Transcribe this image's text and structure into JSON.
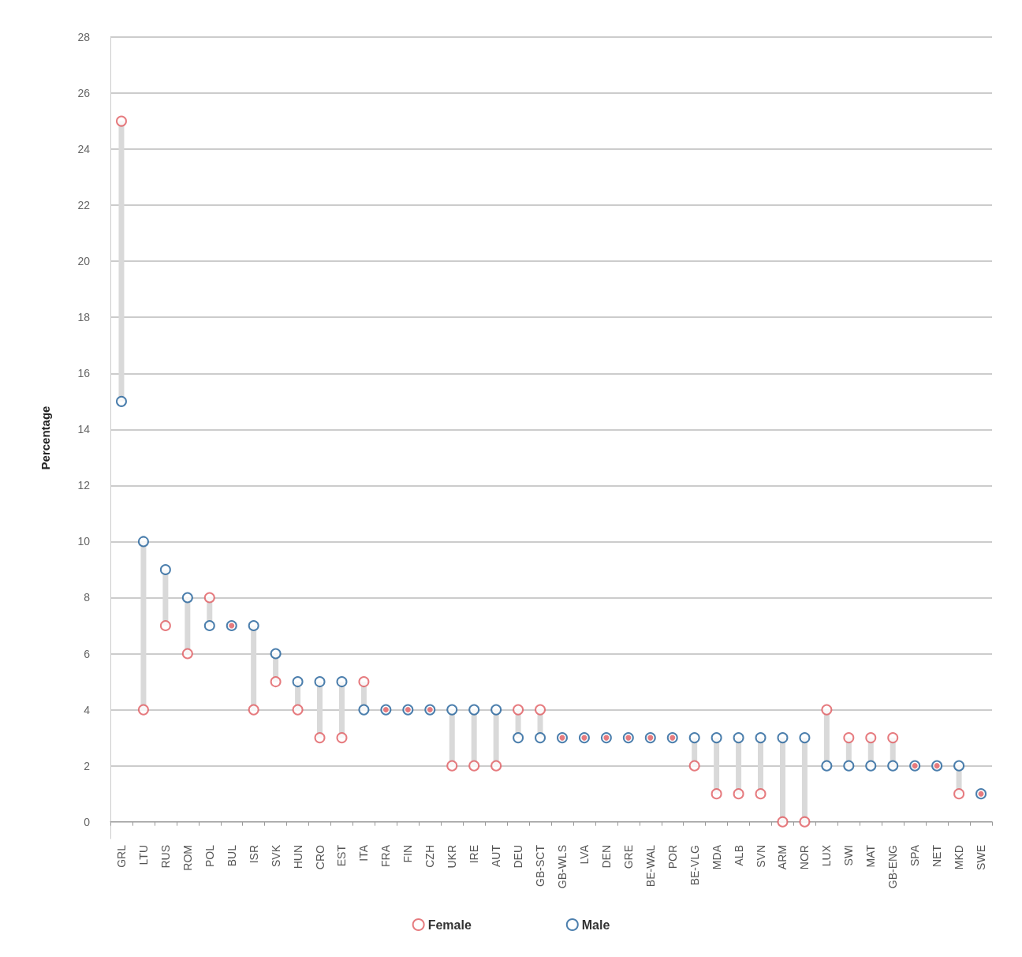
{
  "chart_data": {
    "type": "scatter",
    "ylabel": "Percentage",
    "categories": [
      "GRL",
      "LTU",
      "RUS",
      "ROM",
      "POL",
      "BUL",
      "ISR",
      "SVK",
      "HUN",
      "CRO",
      "EST",
      "ITA",
      "FRA",
      "FIN",
      "CZH",
      "UKR",
      "IRE",
      "AUT",
      "DEU",
      "GB-SCT",
      "GB-WLS",
      "LVA",
      "DEN",
      "GRE",
      "BE-WAL",
      "POR",
      "BE-VLG",
      "MDA",
      "ALB",
      "SVN",
      "ARM",
      "NOR",
      "LUX",
      "SWI",
      "MAT",
      "GB-ENG",
      "SPA",
      "NET",
      "MKD",
      "SWE"
    ],
    "series": [
      {
        "type": "bar",
        "color": "#d9d9d9",
        "base": [
          15,
          4,
          7,
          6,
          7,
          null,
          4,
          5,
          4,
          3,
          3,
          4,
          null,
          null,
          null,
          2,
          2,
          2,
          3,
          3,
          null,
          null,
          null,
          null,
          null,
          null,
          2,
          1,
          1,
          1,
          0,
          0,
          2,
          2,
          2,
          2,
          null,
          null,
          1,
          null
        ],
        "values": [
          10,
          6,
          2,
          2,
          1,
          null,
          3,
          1,
          1,
          2,
          2,
          1,
          null,
          null,
          null,
          2,
          2,
          2,
          1,
          1,
          null,
          null,
          null,
          null,
          null,
          null,
          1,
          2,
          2,
          2,
          3,
          3,
          2,
          1,
          1,
          1,
          null,
          null,
          1,
          null
        ]
      },
      {
        "name": "Female",
        "color": "#e05a5f",
        "values": [
          25,
          4,
          7,
          6,
          8,
          7,
          4,
          5,
          4,
          3,
          3,
          5,
          4,
          4,
          4,
          2,
          2,
          2,
          4,
          4,
          3,
          3,
          3,
          3,
          3,
          3,
          2,
          1,
          1,
          1,
          0,
          0,
          4,
          3,
          3,
          3,
          2,
          2,
          1,
          1
        ]
      },
      {
        "name": "Male",
        "color": "#1f5f99",
        "values": [
          15,
          10,
          9,
          8,
          7,
          7,
          7,
          6,
          5,
          5,
          5,
          4,
          4,
          4,
          4,
          4,
          4,
          4,
          3,
          3,
          3,
          3,
          3,
          3,
          3,
          3,
          3,
          3,
          3,
          3,
          3,
          3,
          2,
          2,
          2,
          2,
          2,
          2,
          2,
          1
        ]
      }
    ],
    "ylim": [
      -0.6,
      28
    ],
    "yticks": [
      0,
      2,
      4,
      6,
      8,
      10,
      12,
      14,
      16,
      18,
      20,
      22,
      24,
      26,
      28
    ],
    "grid": "y",
    "legend": "bottom",
    "marker": "circle"
  }
}
